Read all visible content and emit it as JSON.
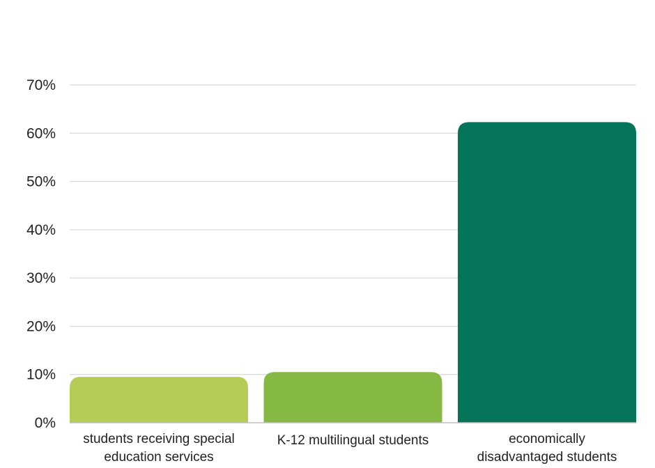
{
  "chart_data": {
    "type": "bar",
    "title": "",
    "xlabel": "",
    "ylabel": "",
    "ylim": [
      0,
      70
    ],
    "y_ticks": [
      "0%",
      "10%",
      "20%",
      "30%",
      "40%",
      "50%",
      "60%",
      "70%"
    ],
    "y_tick_values": [
      0,
      10,
      20,
      30,
      40,
      50,
      60,
      70
    ],
    "grid": true,
    "legend": "none",
    "categories": [
      [
        "students receiving special",
        "education services"
      ],
      [
        "K-12 multilingual students"
      ],
      [
        "economically",
        "disadvantaged students"
      ]
    ],
    "values": [
      9.5,
      10.5,
      62.3
    ],
    "colors": [
      "#b5cc57",
      "#85b944",
      "#04745b"
    ]
  }
}
